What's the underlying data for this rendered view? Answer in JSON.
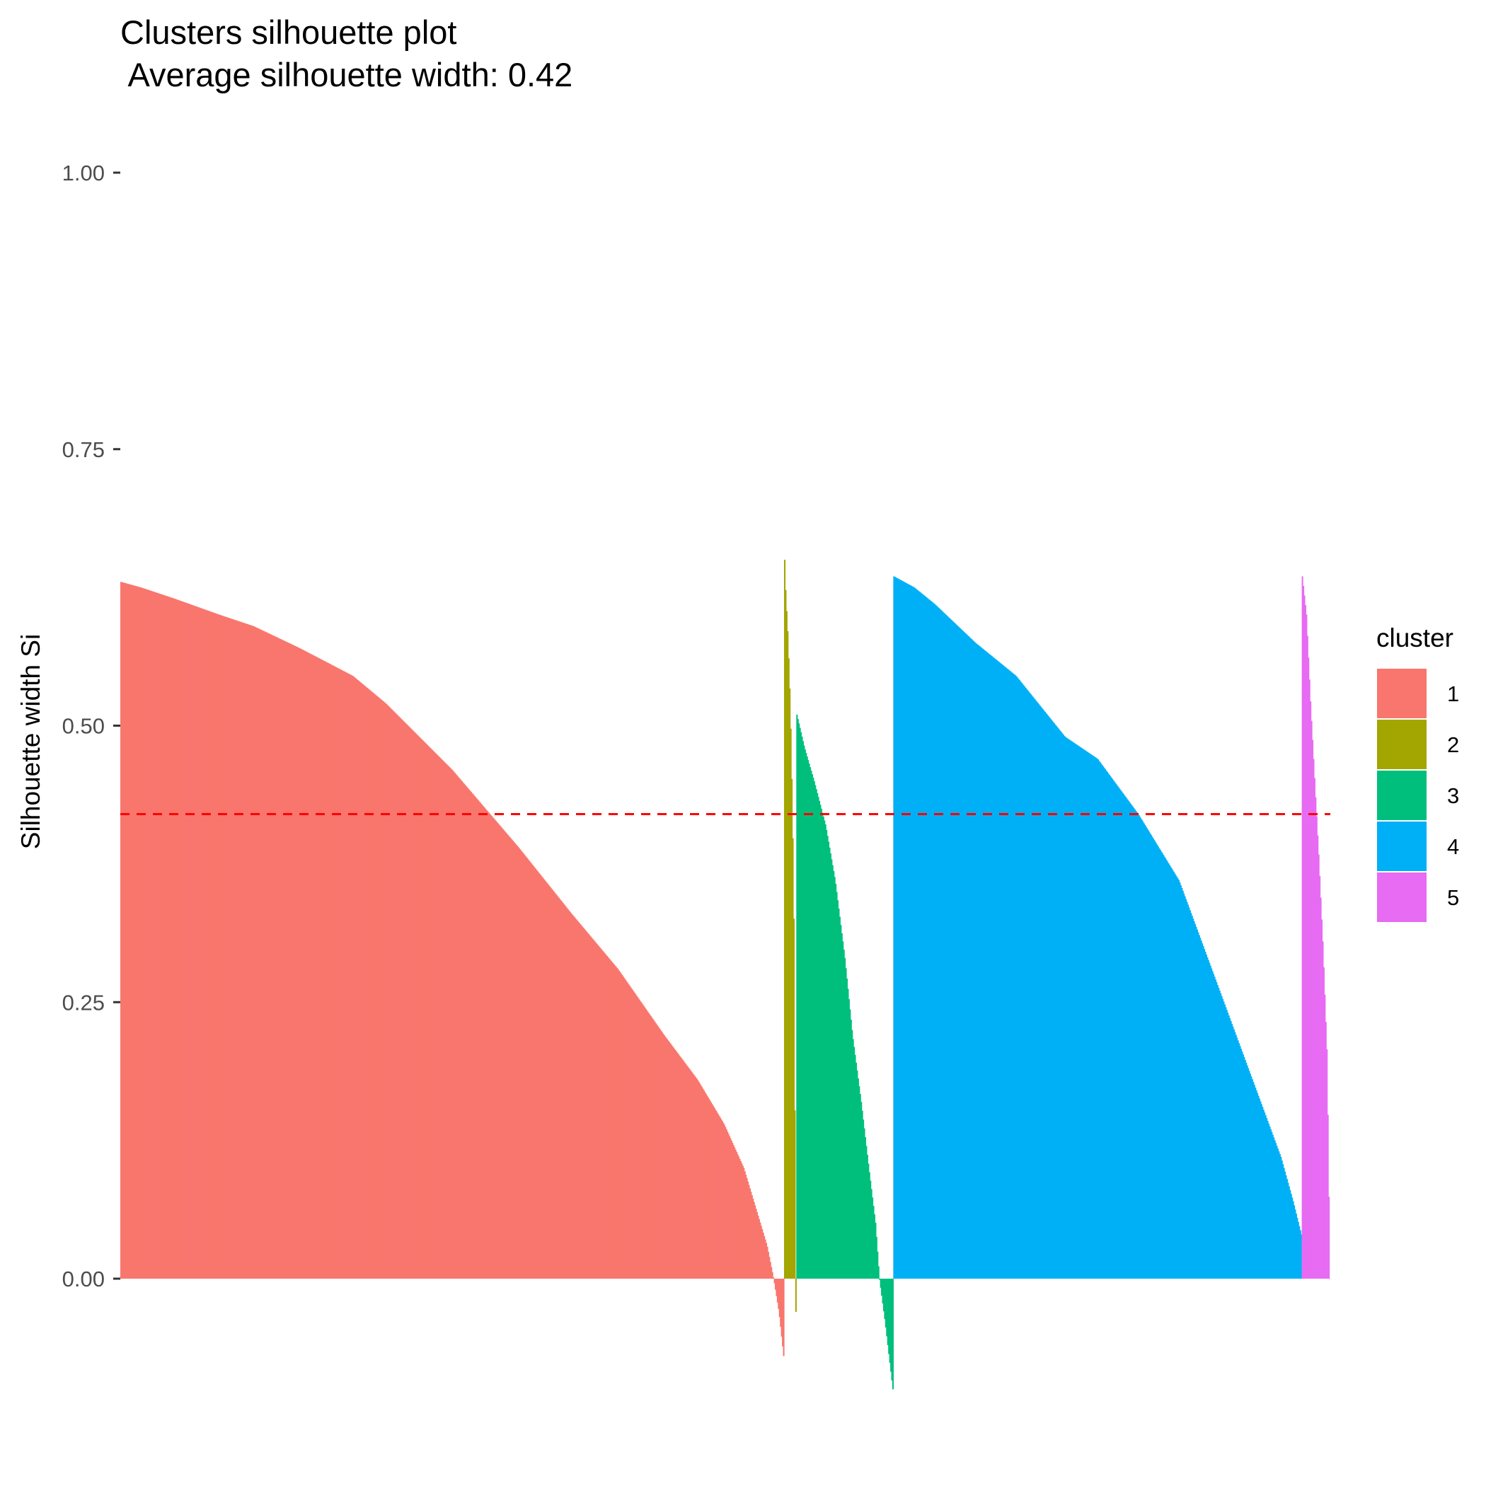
{
  "chart_data": {
    "type": "bar",
    "title": "Clusters silhouette plot",
    "subtitle": " Average silhouette width: 0.42",
    "xlabel": "",
    "ylabel": "Silhouette width Si",
    "ylim": [
      -0.2,
      1.0
    ],
    "yticks": [
      0.0,
      0.25,
      0.5,
      0.75,
      1.0
    ],
    "ytick_labels": [
      "0.00",
      "0.25",
      "0.50",
      "0.75",
      "1.00"
    ],
    "grid": false,
    "legend_title": "cluster",
    "legend_position": "right",
    "average_silhouette_width": 0.42,
    "reference_line": {
      "y": 0.42,
      "style": "dashed",
      "color": "#FF0000"
    },
    "series": [
      {
        "name": "1",
        "color": "#F8766D",
        "count": 650,
        "profile": [
          [
            0.0,
            0.63
          ],
          [
            0.03,
            0.625
          ],
          [
            0.08,
            0.615
          ],
          [
            0.15,
            0.6
          ],
          [
            0.2,
            0.59
          ],
          [
            0.27,
            0.57
          ],
          [
            0.35,
            0.545
          ],
          [
            0.4,
            0.52
          ],
          [
            0.5,
            0.46
          ],
          [
            0.6,
            0.39
          ],
          [
            0.68,
            0.33
          ],
          [
            0.75,
            0.28
          ],
          [
            0.82,
            0.22
          ],
          [
            0.87,
            0.18
          ],
          [
            0.91,
            0.14
          ],
          [
            0.94,
            0.1
          ],
          [
            0.96,
            0.06
          ],
          [
            0.975,
            0.03
          ],
          [
            0.985,
            0.0
          ],
          [
            0.993,
            -0.03
          ],
          [
            1.0,
            -0.07
          ]
        ]
      },
      {
        "name": "2",
        "color": "#A3A500",
        "count": 12,
        "profile": [
          [
            0.0,
            0.65
          ],
          [
            0.1,
            0.62
          ],
          [
            0.3,
            0.58
          ],
          [
            0.5,
            0.52
          ],
          [
            0.7,
            0.42
          ],
          [
            0.85,
            0.3
          ],
          [
            0.93,
            0.1
          ],
          [
            1.0,
            -0.03
          ]
        ]
      },
      {
        "name": "3",
        "color": "#00BF7D",
        "count": 95,
        "profile": [
          [
            0.0,
            0.51
          ],
          [
            0.08,
            0.48
          ],
          [
            0.18,
            0.45
          ],
          [
            0.3,
            0.41
          ],
          [
            0.4,
            0.36
          ],
          [
            0.5,
            0.29
          ],
          [
            0.58,
            0.22
          ],
          [
            0.67,
            0.16
          ],
          [
            0.75,
            0.1
          ],
          [
            0.82,
            0.05
          ],
          [
            0.86,
            0.0
          ],
          [
            0.92,
            -0.04
          ],
          [
            1.0,
            -0.1
          ]
        ]
      },
      {
        "name": "4",
        "color": "#00B0F6",
        "count": 400,
        "profile": [
          [
            0.0,
            0.635
          ],
          [
            0.05,
            0.625
          ],
          [
            0.1,
            0.61
          ],
          [
            0.2,
            0.575
          ],
          [
            0.3,
            0.545
          ],
          [
            0.42,
            0.49
          ],
          [
            0.5,
            0.47
          ],
          [
            0.6,
            0.42
          ],
          [
            0.7,
            0.36
          ],
          [
            0.76,
            0.3
          ],
          [
            0.8,
            0.26
          ],
          [
            0.86,
            0.2
          ],
          [
            0.9,
            0.16
          ],
          [
            0.95,
            0.11
          ],
          [
            0.98,
            0.07
          ],
          [
            1.0,
            0.04
          ]
        ]
      },
      {
        "name": "5",
        "color": "#E76BF3",
        "count": 28,
        "profile": [
          [
            0.0,
            0.635
          ],
          [
            0.15,
            0.6
          ],
          [
            0.3,
            0.52
          ],
          [
            0.45,
            0.45
          ],
          [
            0.6,
            0.38
          ],
          [
            0.75,
            0.3
          ],
          [
            0.9,
            0.2
          ],
          [
            1.0,
            0.0
          ]
        ]
      }
    ]
  }
}
